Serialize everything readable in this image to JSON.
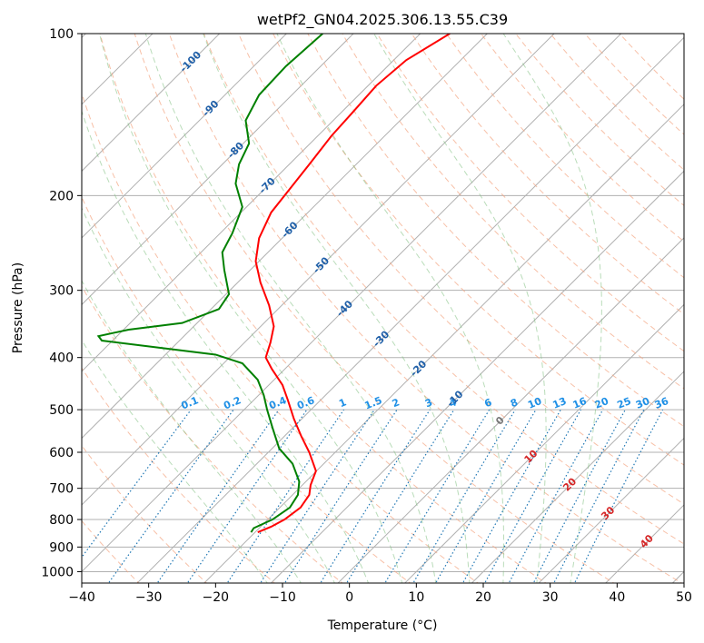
{
  "chart_data": {
    "type": "line",
    "subtype": "skew-t log-p diagram",
    "title": "wetPf2_GN04.2025.306.13.55.C39",
    "xlabel": "Temperature (°C)",
    "ylabel": "Pressure (hPa)",
    "xlim": [
      -40,
      50
    ],
    "ylim": [
      1050,
      100
    ],
    "x_ticks": [
      -40,
      -30,
      -20,
      -10,
      0,
      10,
      20,
      30,
      40,
      50
    ],
    "x_tick_labels": [
      "−40",
      "−30",
      "−20",
      "−10",
      "0",
      "10",
      "20",
      "30",
      "40",
      "50"
    ],
    "y_ticks": [
      100,
      200,
      300,
      400,
      500,
      600,
      700,
      800,
      900,
      1000
    ],
    "y_tick_labels": [
      "100",
      "200",
      "300",
      "400",
      "500",
      "600",
      "700",
      "800",
      "900",
      "1000"
    ],
    "skew_lines_c": [
      -120,
      -110,
      -100,
      -90,
      -80,
      -70,
      -60,
      -50,
      -40,
      -30,
      -20,
      -10,
      0,
      10,
      20,
      30,
      40,
      50
    ],
    "dry_adiabats_k": [
      240,
      250,
      260,
      270,
      280,
      290,
      300,
      310,
      320,
      330,
      340,
      350,
      360,
      370,
      380,
      390,
      400,
      410,
      420,
      430,
      440,
      450
    ],
    "moist_adiabats_c": [
      -10,
      -5,
      0,
      5,
      10,
      15,
      20,
      25,
      30,
      35
    ],
    "mixing_ratio_labels": [
      "0.1",
      "0.2",
      "0.4",
      "0.6",
      "1",
      "1.5",
      "2",
      "3",
      "4",
      "6",
      "8",
      "10",
      "13",
      "16",
      "20",
      "25",
      "30",
      "36"
    ],
    "mixing_ratio_values": [
      0.1,
      0.2,
      0.4,
      0.6,
      1,
      1.5,
      2,
      3,
      4,
      6,
      8,
      10,
      13,
      16,
      20,
      25,
      30,
      36
    ],
    "blue_isotherm_labels": [
      {
        "text": "-100",
        "t": -100,
        "p": 113
      },
      {
        "text": "-90",
        "t": -90,
        "p": 138
      },
      {
        "text": "-80",
        "t": -80,
        "p": 165
      },
      {
        "text": "-70",
        "t": -70,
        "p": 192
      },
      {
        "text": "-60",
        "t": -60,
        "p": 232
      },
      {
        "text": "-50",
        "t": -50,
        "p": 270
      },
      {
        "text": "-40",
        "t": -40,
        "p": 325
      },
      {
        "text": "-30",
        "t": -30,
        "p": 370
      },
      {
        "text": "-20",
        "t": -20,
        "p": 420
      },
      {
        "text": "-10",
        "t": -10,
        "p": 478
      }
    ],
    "red_isotherm_labels": [
      {
        "text": "0",
        "t": 0,
        "p": 525
      },
      {
        "text": "10",
        "t": 10,
        "p": 612
      },
      {
        "text": "20",
        "t": 20,
        "p": 690
      },
      {
        "text": "30",
        "t": 30,
        "p": 780
      },
      {
        "text": "40",
        "t": 40,
        "p": 880
      }
    ],
    "series": [
      {
        "name": "Temperature",
        "color": "#ff0000",
        "points": [
          {
            "p": 100,
            "x": 15.0
          },
          {
            "p": 112,
            "x": 8.5
          },
          {
            "p": 125,
            "x": 4.0
          },
          {
            "p": 140,
            "x": 0.5
          },
          {
            "p": 155,
            "x": -2.7
          },
          {
            "p": 175,
            "x": -6.0
          },
          {
            "p": 195,
            "x": -9.0
          },
          {
            "p": 215,
            "x": -11.7
          },
          {
            "p": 240,
            "x": -13.5
          },
          {
            "p": 265,
            "x": -14.0
          },
          {
            "p": 290,
            "x": -13.3
          },
          {
            "p": 320,
            "x": -12.0
          },
          {
            "p": 350,
            "x": -11.3
          },
          {
            "p": 375,
            "x": -11.8
          },
          {
            "p": 400,
            "x": -12.5
          },
          {
            "p": 420,
            "x": -11.6
          },
          {
            "p": 450,
            "x": -10.0
          },
          {
            "p": 480,
            "x": -9.2
          },
          {
            "p": 520,
            "x": -8.3
          },
          {
            "p": 560,
            "x": -7.2
          },
          {
            "p": 600,
            "x": -6.0
          },
          {
            "p": 650,
            "x": -5.0
          },
          {
            "p": 690,
            "x": -5.8
          },
          {
            "p": 720,
            "x": -6.0
          },
          {
            "p": 760,
            "x": -7.3
          },
          {
            "p": 800,
            "x": -9.7
          },
          {
            "p": 825,
            "x": -11.7
          },
          {
            "p": 845,
            "x": -13.7
          }
        ]
      },
      {
        "name": "Dewpoint",
        "color": "#008000",
        "points": [
          {
            "p": 100,
            "x": -4.0
          },
          {
            "p": 115,
            "x": -9.5
          },
          {
            "p": 130,
            "x": -13.5
          },
          {
            "p": 145,
            "x": -15.5
          },
          {
            "p": 160,
            "x": -15.0
          },
          {
            "p": 175,
            "x": -16.5
          },
          {
            "p": 190,
            "x": -17.0
          },
          {
            "p": 210,
            "x": -16.0
          },
          {
            "p": 235,
            "x": -17.5
          },
          {
            "p": 255,
            "x": -19.0
          },
          {
            "p": 275,
            "x": -18.7
          },
          {
            "p": 305,
            "x": -18.0
          },
          {
            "p": 325,
            "x": -19.5
          },
          {
            "p": 345,
            "x": -25.0
          },
          {
            "p": 355,
            "x": -33.0
          },
          {
            "p": 365,
            "x": -37.5
          },
          {
            "p": 372,
            "x": -37.0
          },
          {
            "p": 380,
            "x": -31.0
          },
          {
            "p": 395,
            "x": -20.0
          },
          {
            "p": 410,
            "x": -16.0
          },
          {
            "p": 440,
            "x": -13.7
          },
          {
            "p": 470,
            "x": -12.8
          },
          {
            "p": 500,
            "x": -12.3
          },
          {
            "p": 540,
            "x": -11.5
          },
          {
            "p": 590,
            "x": -10.5
          },
          {
            "p": 630,
            "x": -8.5
          },
          {
            "p": 680,
            "x": -7.5
          },
          {
            "p": 720,
            "x": -7.7
          },
          {
            "p": 760,
            "x": -8.9
          },
          {
            "p": 800,
            "x": -11.5
          },
          {
            "p": 830,
            "x": -14.3
          },
          {
            "p": 845,
            "x": -14.7
          }
        ]
      }
    ]
  }
}
